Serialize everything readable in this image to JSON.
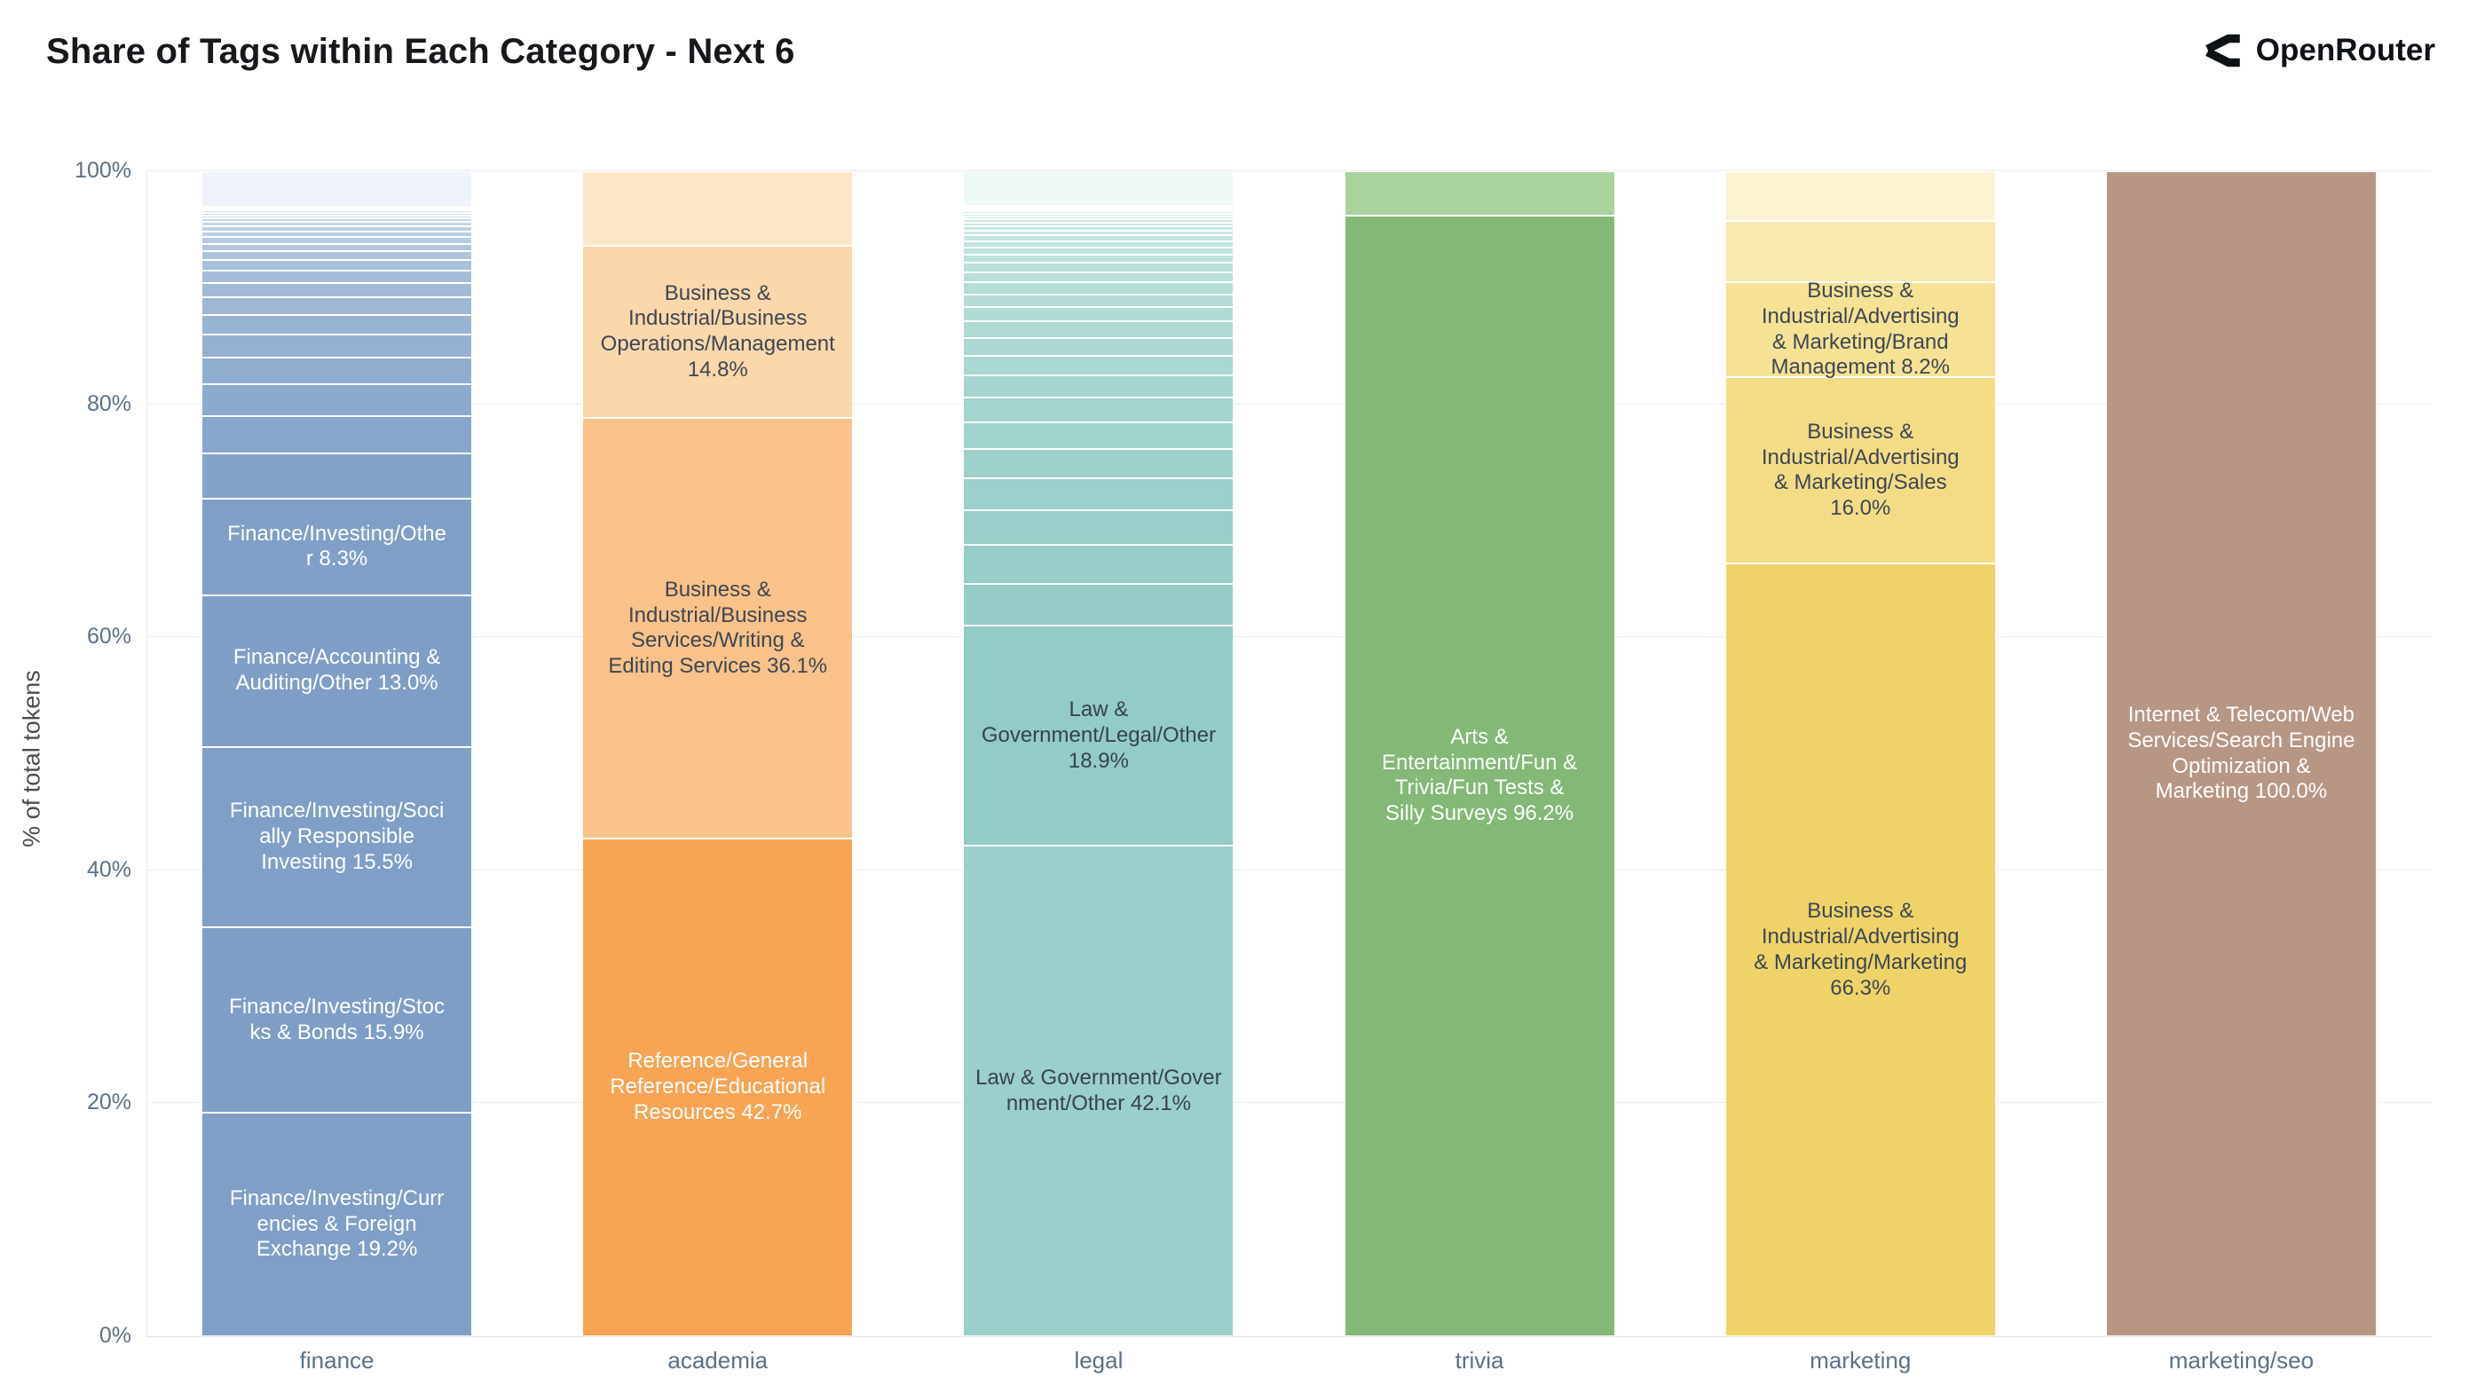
{
  "title": "Share of Tags within Each Category - Next 6",
  "brand": {
    "name": "OpenRouter"
  },
  "y_axis": {
    "label": "% of total tokens"
  },
  "chart_data": {
    "type": "bar",
    "stacked": true,
    "units": "percent_of_total_tokens",
    "title": "Share of Tags within Each Category - Next 6",
    "xlabel": "",
    "ylabel": "% of total tokens",
    "ylim": [
      0,
      100
    ],
    "grid": true,
    "legend": "none",
    "yticks": {
      "values": [
        0,
        20,
        40,
        60,
        80,
        100
      ],
      "labels": [
        "0%",
        "20%",
        "40%",
        "60%",
        "80%",
        "100%"
      ]
    },
    "categories": [
      "finance",
      "academia",
      "legal",
      "trivia",
      "marketing",
      "marketing/seo"
    ],
    "bars": [
      {
        "category": "finance",
        "segments": [
          {
            "value": 19.2,
            "label": "Finance/Investing/Curr\nencies & Foreign\nExchange 19.2%",
            "color": "#7f9fc6",
            "label_color": "#ffffff"
          },
          {
            "value": 15.9,
            "label": "Finance/Investing/Stoc\nks & Bonds 15.9%",
            "color": "#7e9ec5",
            "label_color": "#ffffff"
          },
          {
            "value": 15.5,
            "label": "Finance/Investing/Soci\nally Responsible\nInvesting 15.5%",
            "color": "#7f9fc6",
            "label_color": "#ffffff"
          },
          {
            "value": 13.0,
            "label": "Finance/Accounting &\nAuditing/Other 13.0%",
            "color": "#7e9ec5",
            "label_color": "#ffffff"
          },
          {
            "value": 8.3,
            "label": "Finance/Investing/Othe\nr 8.3%",
            "color": "#7f9fc6",
            "label_color": "#ffffff"
          },
          {
            "value": 3.9,
            "label": "",
            "color": "#84a3c9"
          },
          {
            "value": 3.2,
            "label": "",
            "color": "#88a6cb"
          },
          {
            "value": 2.7,
            "label": "",
            "color": "#8caacd"
          },
          {
            "value": 2.3,
            "label": "",
            "color": "#90adcf"
          },
          {
            "value": 2.0,
            "label": "",
            "color": "#95b0d1"
          },
          {
            "value": 1.7,
            "label": "",
            "color": "#99b3d3"
          },
          {
            "value": 1.45,
            "label": "",
            "color": "#9db7d5"
          },
          {
            "value": 1.25,
            "label": "",
            "color": "#a1bad7"
          },
          {
            "value": 1.05,
            "label": "",
            "color": "#a5bdd9"
          },
          {
            "value": 0.9,
            "label": "",
            "color": "#aac1db"
          },
          {
            "value": 0.78,
            "label": "",
            "color": "#aec4dd"
          },
          {
            "value": 0.66,
            "label": "",
            "color": "#b2c7df"
          },
          {
            "value": 0.57,
            "label": "",
            "color": "#b6cbe1"
          },
          {
            "value": 0.49,
            "label": "",
            "color": "#bacee3"
          },
          {
            "value": 0.42,
            "label": "",
            "color": "#bfd1e5"
          },
          {
            "value": 0.36,
            "label": "",
            "color": "#c3d5e7"
          },
          {
            "value": 0.31,
            "label": "",
            "color": "#c7d8e9"
          },
          {
            "value": 0.27,
            "label": "",
            "color": "#cbdbeb"
          },
          {
            "value": 0.23,
            "label": "",
            "color": "#cfdfed"
          },
          {
            "value": 0.2,
            "label": "",
            "color": "#d4e2ef"
          },
          {
            "value": 0.17,
            "label": "",
            "color": "#d8e5f0"
          },
          {
            "value": 0.15,
            "label": "",
            "color": "#dce7f1"
          },
          {
            "value": 3.04,
            "label": "",
            "color": "#edf3f8"
          }
        ]
      },
      {
        "category": "academia",
        "segments": [
          {
            "value": 42.7,
            "label": "Reference/General\nReference/Educational\nResources 42.7%",
            "color": "#f8a455",
            "label_color": "#ffffff"
          },
          {
            "value": 36.1,
            "label": "Business &\nIndustrial/Business\nServices/Writing &\nEditing Services 36.1%",
            "color": "#f9c28a",
            "label_color": "#3d4753"
          },
          {
            "value": 14.8,
            "label": "Business &\nIndustrial/Business\nOperations/Management\n14.8%",
            "color": "#fbd7ac",
            "label_color": "#3d4753"
          },
          {
            "value": 6.4,
            "label": "",
            "color": "#fde5c8"
          }
        ]
      },
      {
        "category": "legal",
        "segments": [
          {
            "value": 42.1,
            "label": "Law & Government/Gover\nnment/Other 42.1%",
            "color": "#9bcfc9",
            "label_color": "#37434f"
          },
          {
            "value": 18.9,
            "label": "Law &\nGovernment/Legal/Other\n18.9%",
            "color": "#93cbc5",
            "label_color": "#37434f"
          },
          {
            "value": 3.6,
            "label": "",
            "color": "#95ccc6"
          },
          {
            "value": 3.3,
            "label": "",
            "color": "#97cdc7"
          },
          {
            "value": 3.0,
            "label": "",
            "color": "#9acfc9"
          },
          {
            "value": 2.75,
            "label": "",
            "color": "#9cd0ca"
          },
          {
            "value": 2.5,
            "label": "",
            "color": "#9fd1cb"
          },
          {
            "value": 2.3,
            "label": "",
            "color": "#a1d3cd"
          },
          {
            "value": 2.1,
            "label": "",
            "color": "#a4d4ce"
          },
          {
            "value": 1.9,
            "label": "",
            "color": "#a6d5cf"
          },
          {
            "value": 1.7,
            "label": "",
            "color": "#a9d7d1"
          },
          {
            "value": 1.55,
            "label": "",
            "color": "#abd8d2"
          },
          {
            "value": 1.4,
            "label": "",
            "color": "#aedad4"
          },
          {
            "value": 1.25,
            "label": "",
            "color": "#b0dbd5"
          },
          {
            "value": 1.1,
            "label": "",
            "color": "#b3dcd6"
          },
          {
            "value": 1.0,
            "label": "",
            "color": "#b5ded8"
          },
          {
            "value": 0.9,
            "label": "",
            "color": "#b8dfd9"
          },
          {
            "value": 0.8,
            "label": "",
            "color": "#bae0da"
          },
          {
            "value": 0.7,
            "label": "",
            "color": "#bde2dc"
          },
          {
            "value": 0.62,
            "label": "",
            "color": "#bfe3dd"
          },
          {
            "value": 0.55,
            "label": "",
            "color": "#c2e5df"
          },
          {
            "value": 0.48,
            "label": "",
            "color": "#c4e6e0"
          },
          {
            "value": 0.42,
            "label": "",
            "color": "#c7e7e1"
          },
          {
            "value": 0.37,
            "label": "",
            "color": "#c9e9e3"
          },
          {
            "value": 0.32,
            "label": "",
            "color": "#cceae4"
          },
          {
            "value": 0.28,
            "label": "",
            "color": "#ceebe5"
          },
          {
            "value": 0.25,
            "label": "",
            "color": "#d1ede7"
          },
          {
            "value": 0.22,
            "label": "",
            "color": "#d3eee8"
          },
          {
            "value": 0.19,
            "label": "",
            "color": "#d6f0ea"
          },
          {
            "value": 0.17,
            "label": "",
            "color": "#d8f1eb"
          },
          {
            "value": 0.15,
            "label": "",
            "color": "#dbf2ec"
          },
          {
            "value": 0.13,
            "label": "",
            "color": "#ddf4ee"
          },
          {
            "value": 3.0,
            "label": "",
            "color": "#eef8f6"
          }
        ]
      },
      {
        "category": "trivia",
        "segments": [
          {
            "value": 96.2,
            "label": "Arts &\nEntertainment/Fun &\nTrivia/Fun Tests &\nSilly Surveys 96.2%",
            "color": "#83b877",
            "label_color": "#ffffff"
          },
          {
            "value": 3.8,
            "label": "",
            "color": "#a9d29d"
          }
        ]
      },
      {
        "category": "marketing",
        "segments": [
          {
            "value": 66.3,
            "label": "Business &\nIndustrial/Advertising\n& Marketing/Marketing\n66.3%",
            "color": "#efd369",
            "label_color": "#3d4753"
          },
          {
            "value": 16.0,
            "label": "Business &\nIndustrial/Advertising\n& Marketing/Sales\n16.0%",
            "color": "#f4dc86",
            "label_color": "#3d4753"
          },
          {
            "value": 8.2,
            "label": "Business &\nIndustrial/Advertising\n& Marketing/Brand\nManagement 8.2%",
            "color": "#f6e295",
            "label_color": "#3d4753"
          },
          {
            "value": 5.2,
            "label": "",
            "color": "#f9e9ae"
          },
          {
            "value": 4.3,
            "label": "",
            "color": "#fdf2d1"
          }
        ]
      },
      {
        "category": "marketing/seo",
        "segments": [
          {
            "value": 100.0,
            "label": "Internet & Telecom/Web\nServices/Search Engine\nOptimization &\nMarketing 100.0%",
            "color": "#b79683",
            "label_color": "#ffffff"
          }
        ]
      }
    ]
  }
}
